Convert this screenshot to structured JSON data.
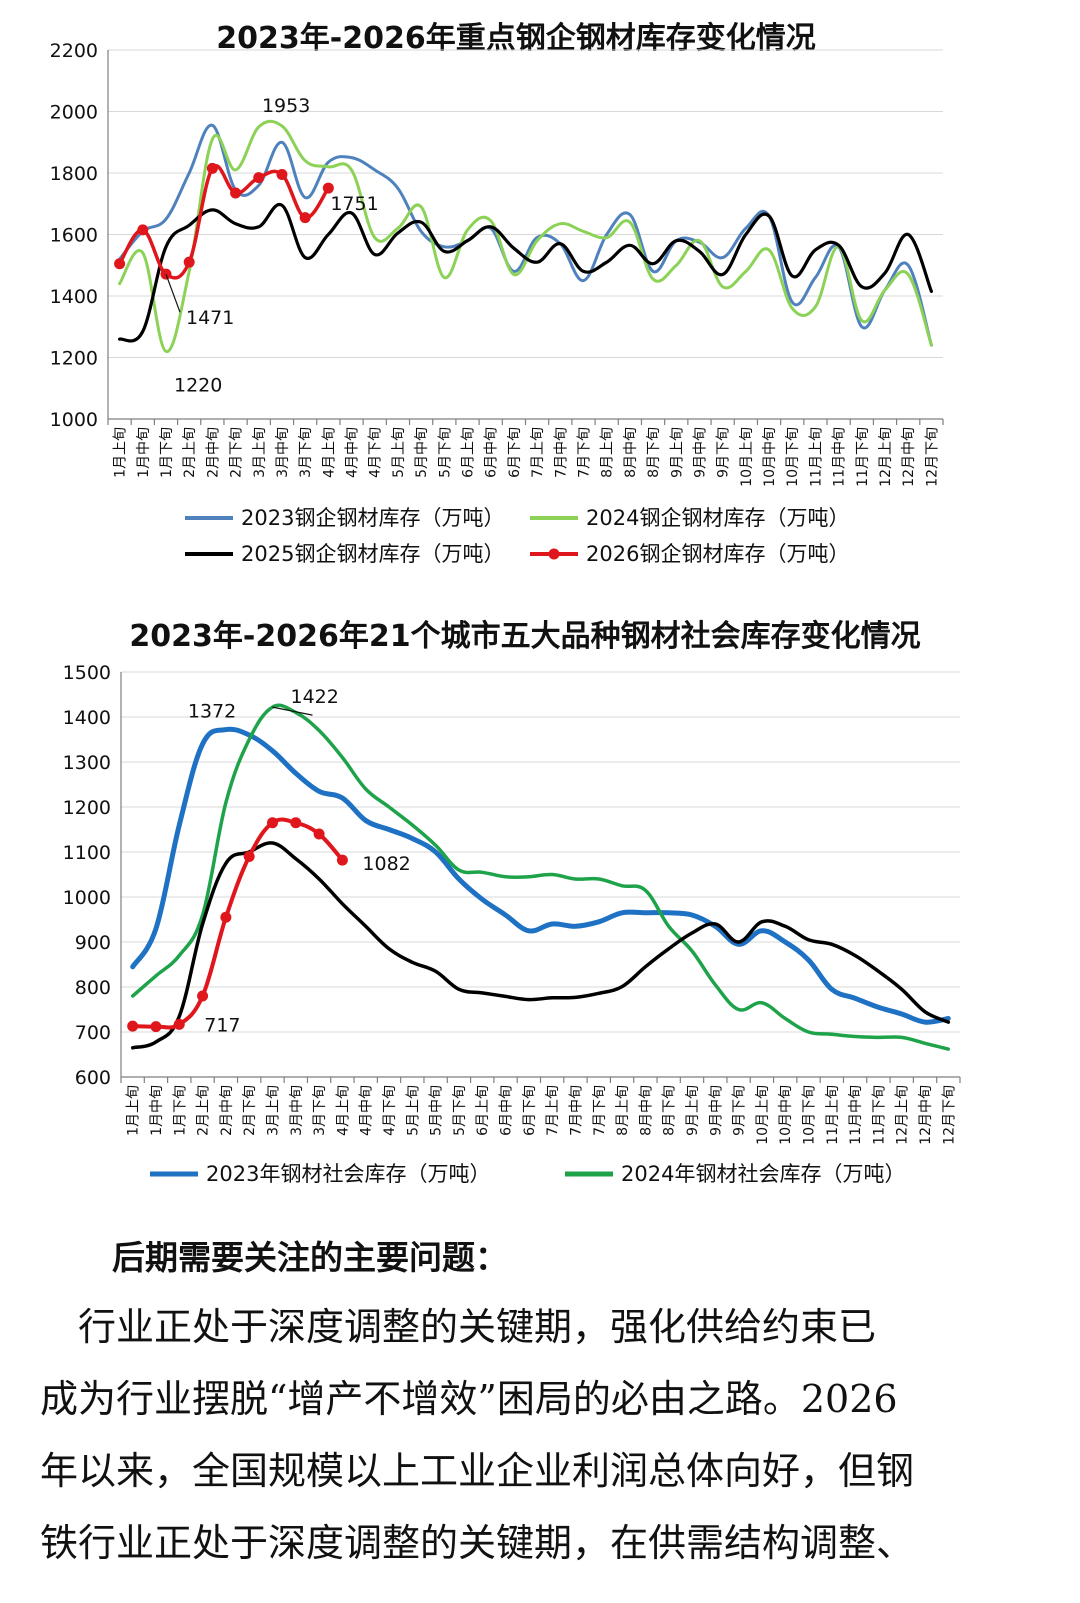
{
  "categories": [
    "1月上旬",
    "1月中旬",
    "1月下旬",
    "2月上旬",
    "2月中旬",
    "2月下旬",
    "3月上旬",
    "3月中旬",
    "3月下旬",
    "4月上旬",
    "4月中旬",
    "4月下旬",
    "5月上旬",
    "5月中旬",
    "5月下旬",
    "6月上旬",
    "6月中旬",
    "6月下旬",
    "7月上旬",
    "7月中旬",
    "7月下旬",
    "8月上旬",
    "8月中旬",
    "8月下旬",
    "9月上旬",
    "9月中旬",
    "9月下旬",
    "10月上旬",
    "10月中旬",
    "10月下旬",
    "11月上旬",
    "11月中旬",
    "11月下旬",
    "12月上旬",
    "12月中旬",
    "12月下旬"
  ],
  "colors": {
    "blue2023": "#4f81bd",
    "green2024": "#8cd257",
    "black2025": "#000000",
    "red2026": "#e0161d",
    "blueBold": "#1f72c3",
    "greenBold": "#1ea34a"
  },
  "chart_data": [
    {
      "type": "line",
      "title": "2023年-2026年重点钢企钢材库存变化情况",
      "ylim": [
        1000,
        2200
      ],
      "yticks": [
        1000,
        1200,
        1400,
        1600,
        1800,
        2000,
        2200
      ],
      "grid": true,
      "legend": "bottom",
      "series": [
        {
          "name": "2023钢企钢材库存（万吨）",
          "color": "#4f81bd",
          "values": [
            1520,
            1610,
            1650,
            1800,
            1955,
            1745,
            1760,
            1900,
            1720,
            1835,
            1850,
            1810,
            1750,
            1610,
            1560,
            1580,
            1620,
            1480,
            1590,
            1570,
            1450,
            1600,
            1665,
            1480,
            1580,
            1575,
            1525,
            1620,
            1660,
            1380,
            1460,
            1560,
            1300,
            1420,
            1500,
            1240
          ]
        },
        {
          "name": "2024钢企钢材库存（万吨）",
          "color": "#8cd257",
          "values": [
            1440,
            1540,
            1220,
            1480,
            1910,
            1810,
            1950,
            1953,
            1840,
            1820,
            1810,
            1590,
            1620,
            1690,
            1460,
            1615,
            1645,
            1470,
            1580,
            1635,
            1610,
            1590,
            1640,
            1455,
            1500,
            1580,
            1430,
            1480,
            1550,
            1360,
            1365,
            1560,
            1320,
            1420,
            1470,
            1240
          ]
        },
        {
          "name": "2025钢企钢材库存（万吨）",
          "color": "#000000",
          "values": [
            1260,
            1285,
            1560,
            1630,
            1680,
            1635,
            1625,
            1695,
            1525,
            1600,
            1670,
            1535,
            1605,
            1640,
            1545,
            1580,
            1625,
            1555,
            1510,
            1570,
            1480,
            1510,
            1565,
            1505,
            1580,
            1545,
            1470,
            1600,
            1660,
            1465,
            1550,
            1565,
            1430,
            1475,
            1600,
            1415
          ]
        },
        {
          "name": "2026钢企钢材库存（万吨）",
          "color": "#e0161d",
          "markers": true,
          "values": [
            1505,
            1615,
            1471,
            1510,
            1815,
            1735,
            1785,
            1795,
            1655,
            1751
          ]
        }
      ],
      "annotations": [
        {
          "text": "1953",
          "cat": 7,
          "value": 1953
        },
        {
          "text": "1751",
          "cat": 9,
          "value": 1751
        },
        {
          "text": "1471",
          "cat": 2,
          "value": 1471
        },
        {
          "text": "1220",
          "cat": 2,
          "value": 1220
        }
      ]
    },
    {
      "type": "line",
      "title": "2023年-2026年21个城市五大品种钢材社会库存变化情况",
      "ylim": [
        600,
        1500
      ],
      "yticks": [
        600,
        700,
        800,
        900,
        1000,
        1100,
        1200,
        1300,
        1400,
        1500
      ],
      "grid": true,
      "legend": "bottom",
      "series": [
        {
          "name": "2023年钢材社会库存（万吨）",
          "color": "#1f72c3",
          "values": [
            845,
            930,
            1160,
            1340,
            1372,
            1360,
            1325,
            1275,
            1235,
            1220,
            1170,
            1150,
            1130,
            1100,
            1040,
            995,
            960,
            925,
            940,
            935,
            945,
            965,
            965,
            965,
            960,
            935,
            895,
            925,
            900,
            860,
            795,
            775,
            755,
            740,
            722,
            730
          ]
        },
        {
          "name": "2024年钢材社会库存（万吨）",
          "color": "#1ea34a",
          "values": [
            780,
            825,
            870,
            960,
            1210,
            1350,
            1422,
            1410,
            1370,
            1310,
            1240,
            1200,
            1160,
            1115,
            1060,
            1055,
            1045,
            1045,
            1050,
            1040,
            1040,
            1025,
            1015,
            935,
            880,
            805,
            750,
            765,
            730,
            700,
            695,
            690,
            688,
            688,
            675,
            662
          ]
        },
        {
          "name": "",
          "color": "#000000",
          "values": [
            665,
            678,
            735,
            940,
            1075,
            1100,
            1120,
            1085,
            1040,
            985,
            935,
            885,
            855,
            835,
            795,
            787,
            779,
            772,
            776,
            777,
            786,
            801,
            845,
            885,
            920,
            940,
            900,
            945,
            935,
            905,
            895,
            870,
            835,
            795,
            745,
            722
          ]
        },
        {
          "name": "",
          "color": "#e0161d",
          "markers": true,
          "values": [
            713,
            712,
            717,
            780,
            955,
            1090,
            1165,
            1165,
            1140,
            1082
          ]
        }
      ],
      "annotations": [
        {
          "text": "1372",
          "cat": 4,
          "value": 1372
        },
        {
          "text": "1422",
          "cat": 6,
          "value": 1422
        },
        {
          "text": "1082",
          "cat": 9,
          "value": 1082
        },
        {
          "text": "717",
          "cat": 2,
          "value": 717
        }
      ]
    }
  ],
  "article": {
    "heading": "后期需要关注的主要问题：",
    "lines": [
      "　行业正处于深度调整的关键期，强化供给约束已",
      "成为行业摆脱“增产不增效”困局的必由之路。2026",
      "年以来，全国规模以上工业企业利润总体向好，但钢",
      "铁行业正处于深度调整的关键期，在供需结构调整、"
    ]
  }
}
